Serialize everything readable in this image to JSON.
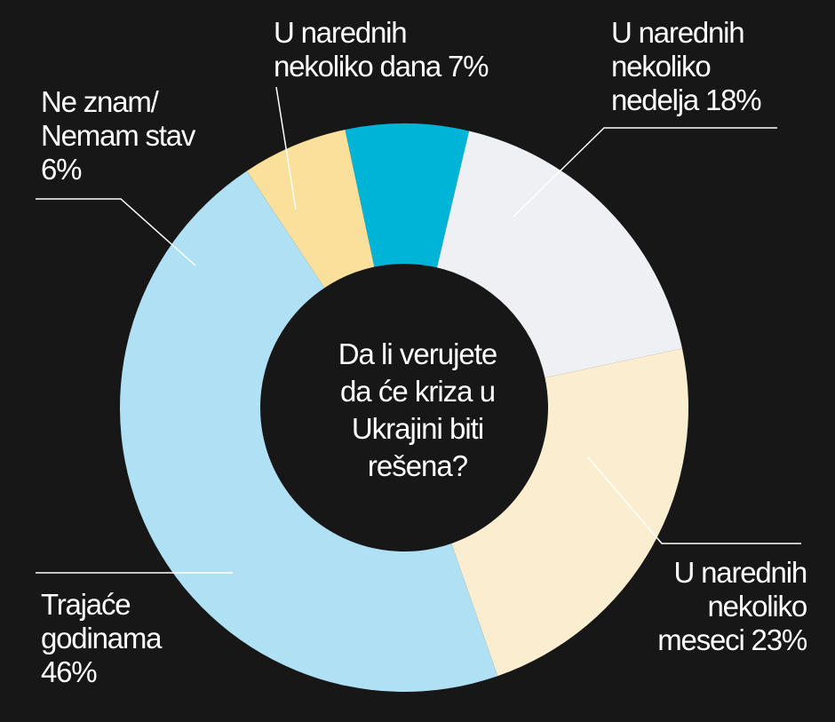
{
  "chart_data": {
    "type": "pie",
    "variant": "donut",
    "center_text": [
      "Da li verujete",
      "da će kriza u",
      "Ukrajini biti",
      "rešena?"
    ],
    "slices": [
      {
        "id": "dana",
        "label_lines": [
          "U narednih",
          "nekoliko dana 7%"
        ],
        "value": 7,
        "color": "#00b4d8"
      },
      {
        "id": "nedelja",
        "label_lines": [
          "U narednih",
          "nekoliko",
          "nedelja 18%"
        ],
        "value": 18,
        "color": "#eef0f4"
      },
      {
        "id": "meseci",
        "label_lines": [
          "U narednih",
          "nekoliko",
          "meseci 23%"
        ],
        "value": 23,
        "color": "#fbeed0"
      },
      {
        "id": "godinama",
        "label_lines": [
          "Trajaće",
          "godinama",
          "46%"
        ],
        "value": 46,
        "color": "#b0e0f3"
      },
      {
        "id": "neznam",
        "label_lines": [
          "Ne znam/",
          "Nemam stav",
          "6%"
        ],
        "value": 6,
        "color": "#fbe09c"
      }
    ],
    "legend": "none"
  }
}
